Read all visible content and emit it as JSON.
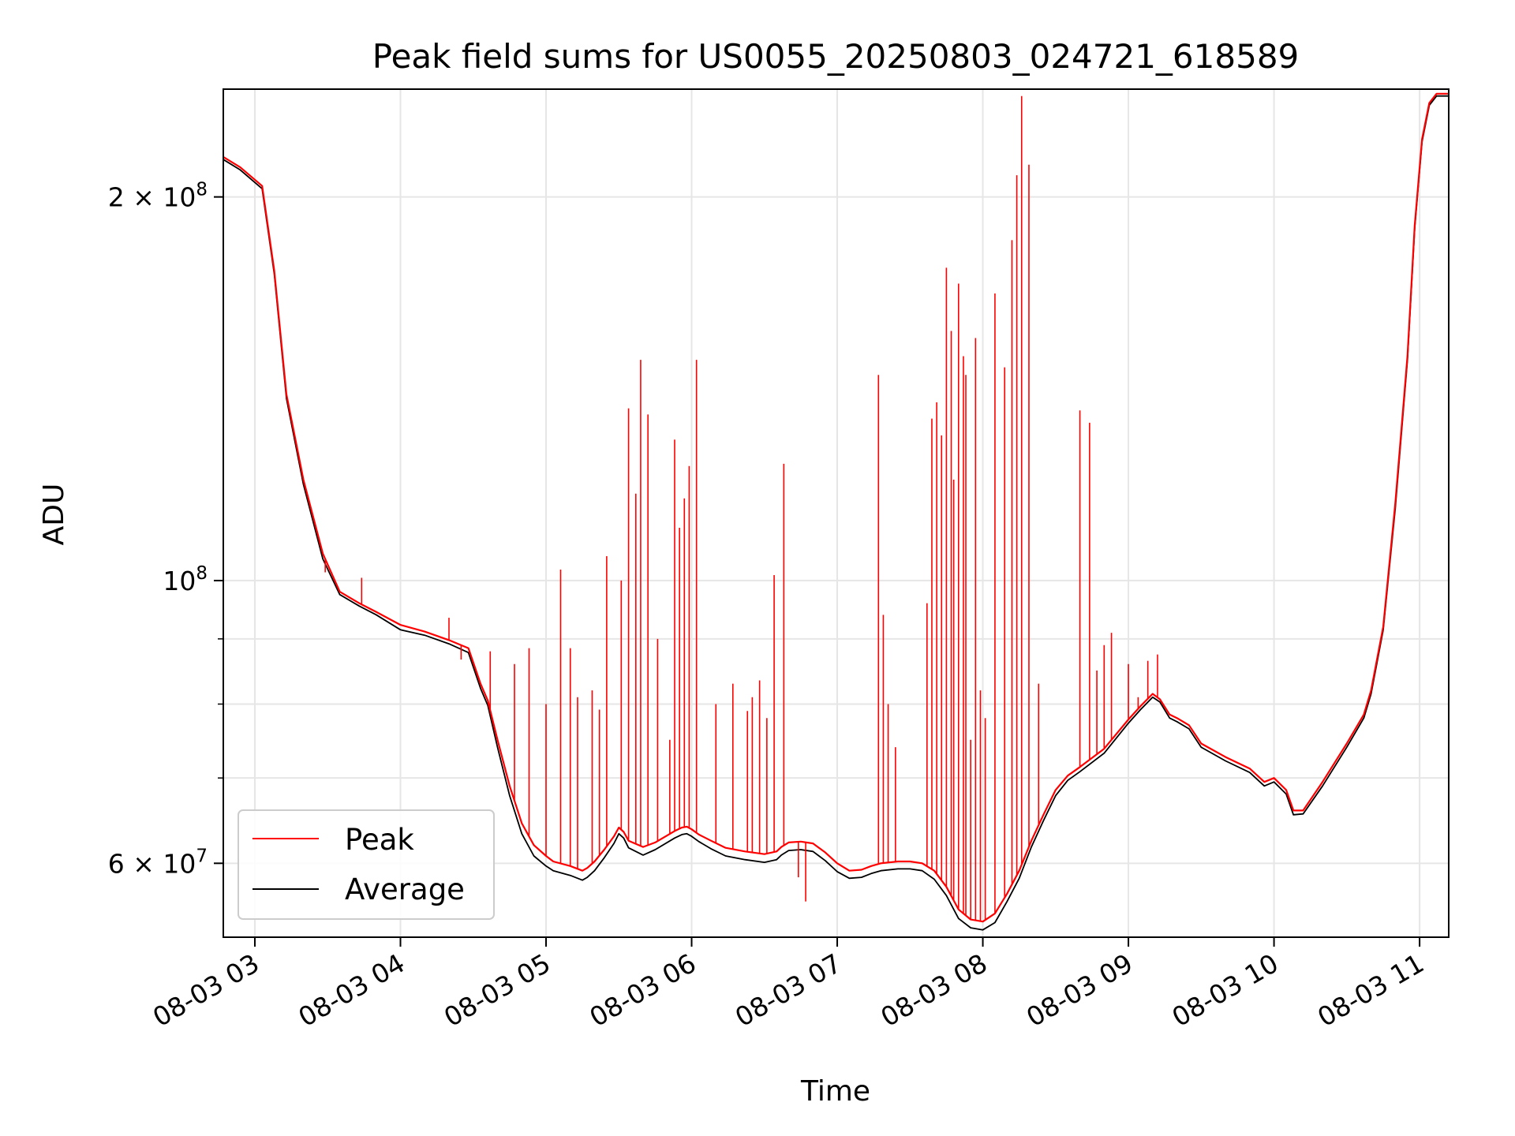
{
  "chart_data": {
    "type": "line",
    "title": "Peak field sums for US0055_20250803_024721_618589",
    "xlabel": "Time",
    "ylabel": "ADU",
    "y_scale": "log",
    "xlim": [
      "2025-08-03 02:47",
      "2025-08-03 11:12"
    ],
    "ylim": [
      52500000,
      243000000
    ],
    "grid": true,
    "legend_position": "lower-left",
    "x_ticks": [
      {
        "value": "2025-08-03 03:00",
        "label": "08-03 03"
      },
      {
        "value": "2025-08-03 04:00",
        "label": "08-03 04"
      },
      {
        "value": "2025-08-03 05:00",
        "label": "08-03 05"
      },
      {
        "value": "2025-08-03 06:00",
        "label": "08-03 06"
      },
      {
        "value": "2025-08-03 07:00",
        "label": "08-03 07"
      },
      {
        "value": "2025-08-03 08:00",
        "label": "08-03 08"
      },
      {
        "value": "2025-08-03 09:00",
        "label": "08-03 09"
      },
      {
        "value": "2025-08-03 10:00",
        "label": "08-03 10"
      },
      {
        "value": "2025-08-03 11:00",
        "label": "08-03 11"
      }
    ],
    "y_ticks": [
      {
        "value": 60000000,
        "base": "6",
        "sup": "7"
      },
      {
        "value": 100000000,
        "base": "10",
        "sup": "8"
      },
      {
        "value": 200000000,
        "base": "2",
        "sup": "8"
      }
    ],
    "y_minor_ticks": [
      70000000,
      80000000,
      90000000
    ],
    "series": [
      {
        "name": "Peak",
        "color": "#ff0000",
        "x": [
          "2025-08-03 02:47",
          "2025-08-03 02:54",
          "2025-08-03 03:03",
          "2025-08-03 03:08",
          "2025-08-03 03:13",
          "2025-08-03 03:20",
          "2025-08-03 03:28",
          "2025-08-03 03:35",
          "2025-08-03 03:43",
          "2025-08-03 03:50",
          "2025-08-03 04:00",
          "2025-08-03 04:10",
          "2025-08-03 04:20",
          "2025-08-03 04:28",
          "2025-08-03 04:33",
          "2025-08-03 04:36",
          "2025-08-03 04:40",
          "2025-08-03 04:45",
          "2025-08-03 04:50",
          "2025-08-03 04:55",
          "2025-08-03 05:00",
          "2025-08-03 05:03",
          "2025-08-03 05:10",
          "2025-08-03 05:15",
          "2025-08-03 05:17",
          "2025-08-03 05:20",
          "2025-08-03 05:24",
          "2025-08-03 05:28",
          "2025-08-03 05:30",
          "2025-08-03 05:32",
          "2025-08-03 05:34",
          "2025-08-03 05:40",
          "2025-08-03 05:45",
          "2025-08-03 05:53",
          "2025-08-03 05:56",
          "2025-08-03 05:58",
          "2025-08-03 06:00",
          "2025-08-03 06:03",
          "2025-08-03 06:08",
          "2025-08-03 06:14",
          "2025-08-03 06:22",
          "2025-08-03 06:30",
          "2025-08-03 06:35",
          "2025-08-03 06:37",
          "2025-08-03 06:40",
          "2025-08-03 06:45",
          "2025-08-03 06:50",
          "2025-08-03 06:52",
          "2025-08-03 06:55",
          "2025-08-03 07:00",
          "2025-08-03 07:05",
          "2025-08-03 07:10",
          "2025-08-03 07:14",
          "2025-08-03 07:18",
          "2025-08-03 07:25",
          "2025-08-03 07:30",
          "2025-08-03 07:35",
          "2025-08-03 07:40",
          "2025-08-03 07:45",
          "2025-08-03 07:50",
          "2025-08-03 07:55",
          "2025-08-03 08:00",
          "2025-08-03 08:05",
          "2025-08-03 08:10",
          "2025-08-03 08:15",
          "2025-08-03 08:20",
          "2025-08-03 08:25",
          "2025-08-03 08:30",
          "2025-08-03 08:35",
          "2025-08-03 08:40",
          "2025-08-03 08:50",
          "2025-08-03 09:00",
          "2025-08-03 09:05",
          "2025-08-03 09:10",
          "2025-08-03 09:13",
          "2025-08-03 09:17",
          "2025-08-03 09:20",
          "2025-08-03 09:25",
          "2025-08-03 09:30",
          "2025-08-03 09:40",
          "2025-08-03 09:50",
          "2025-08-03 09:56",
          "2025-08-03 10:00",
          "2025-08-03 10:05",
          "2025-08-03 10:08",
          "2025-08-03 10:12",
          "2025-08-03 10:20",
          "2025-08-03 10:30",
          "2025-08-03 10:37",
          "2025-08-03 10:40",
          "2025-08-03 10:45",
          "2025-08-03 10:50",
          "2025-08-03 10:55",
          "2025-08-03 10:58",
          "2025-08-03 11:01",
          "2025-08-03 11:04",
          "2025-08-03 11:07",
          "2025-08-03 11:12"
        ],
        "values": [
          215000000,
          211000000,
          204000000,
          175000000,
          140000000,
          120000000,
          105000000,
          98000000,
          96000000,
          94500000,
          92300000,
          91200000,
          89800000,
          88500000,
          83000000,
          80500000,
          75000000,
          69000000,
          64500000,
          62000000,
          60800000,
          60200000,
          59700000,
          59200000,
          59500000,
          60200000,
          61500000,
          63000000,
          64000000,
          63500000,
          62500000,
          61800000,
          62300000,
          63600000,
          64000000,
          64100000,
          63800000,
          63200000,
          62500000,
          61700000,
          61300000,
          61000000,
          61300000,
          61800000,
          62300000,
          62400000,
          62200000,
          61800000,
          61200000,
          60000000,
          59200000,
          59300000,
          59700000,
          60000000,
          60200000,
          60200000,
          60000000,
          59200000,
          57500000,
          55200000,
          54200000,
          54000000,
          54800000,
          56800000,
          59200000,
          62500000,
          65500000,
          68500000,
          70300000,
          71400000,
          73800000,
          77800000,
          79700000,
          81500000,
          80700000,
          78500000,
          78000000,
          77000000,
          74500000,
          72700000,
          71200000,
          69500000,
          70000000,
          68500000,
          66000000,
          66000000,
          69500000,
          74500000,
          78500000,
          82000000,
          92000000,
          115000000,
          150000000,
          190000000,
          222000000,
          237000000,
          241000000,
          241000000
        ]
      },
      {
        "name": "Average",
        "color": "#000000",
        "x": [
          "2025-08-03 02:47",
          "2025-08-03 02:54",
          "2025-08-03 03:03",
          "2025-08-03 03:08",
          "2025-08-03 03:13",
          "2025-08-03 03:20",
          "2025-08-03 03:28",
          "2025-08-03 03:35",
          "2025-08-03 03:43",
          "2025-08-03 03:50",
          "2025-08-03 04:00",
          "2025-08-03 04:10",
          "2025-08-03 04:20",
          "2025-08-03 04:28",
          "2025-08-03 04:33",
          "2025-08-03 04:36",
          "2025-08-03 04:40",
          "2025-08-03 04:45",
          "2025-08-03 04:50",
          "2025-08-03 04:55",
          "2025-08-03 05:00",
          "2025-08-03 05:03",
          "2025-08-03 05:10",
          "2025-08-03 05:15",
          "2025-08-03 05:17",
          "2025-08-03 05:20",
          "2025-08-03 05:24",
          "2025-08-03 05:28",
          "2025-08-03 05:30",
          "2025-08-03 05:32",
          "2025-08-03 05:34",
          "2025-08-03 05:40",
          "2025-08-03 05:45",
          "2025-08-03 05:53",
          "2025-08-03 05:56",
          "2025-08-03 05:58",
          "2025-08-03 06:00",
          "2025-08-03 06:03",
          "2025-08-03 06:08",
          "2025-08-03 06:14",
          "2025-08-03 06:22",
          "2025-08-03 06:30",
          "2025-08-03 06:35",
          "2025-08-03 06:37",
          "2025-08-03 06:40",
          "2025-08-03 06:45",
          "2025-08-03 06:50",
          "2025-08-03 06:52",
          "2025-08-03 06:55",
          "2025-08-03 07:00",
          "2025-08-03 07:05",
          "2025-08-03 07:10",
          "2025-08-03 07:14",
          "2025-08-03 07:18",
          "2025-08-03 07:25",
          "2025-08-03 07:30",
          "2025-08-03 07:35",
          "2025-08-03 07:40",
          "2025-08-03 07:45",
          "2025-08-03 07:50",
          "2025-08-03 07:55",
          "2025-08-03 08:00",
          "2025-08-03 08:05",
          "2025-08-03 08:10",
          "2025-08-03 08:15",
          "2025-08-03 08:20",
          "2025-08-03 08:25",
          "2025-08-03 08:30",
          "2025-08-03 08:35",
          "2025-08-03 08:40",
          "2025-08-03 08:50",
          "2025-08-03 09:00",
          "2025-08-03 09:05",
          "2025-08-03 09:10",
          "2025-08-03 09:13",
          "2025-08-03 09:17",
          "2025-08-03 09:20",
          "2025-08-03 09:25",
          "2025-08-03 09:30",
          "2025-08-03 09:40",
          "2025-08-03 09:50",
          "2025-08-03 09:56",
          "2025-08-03 10:00",
          "2025-08-03 10:05",
          "2025-08-03 10:08",
          "2025-08-03 10:12",
          "2025-08-03 10:20",
          "2025-08-03 10:30",
          "2025-08-03 10:37",
          "2025-08-03 10:40",
          "2025-08-03 10:45",
          "2025-08-03 10:50",
          "2025-08-03 10:55",
          "2025-08-03 10:58",
          "2025-08-03 11:01",
          "2025-08-03 11:04",
          "2025-08-03 11:07",
          "2025-08-03 11:12"
        ],
        "values": [
          214000000,
          210000000,
          203000000,
          174000000,
          139000000,
          119000000,
          104000000,
          97500000,
          95500000,
          94000000,
          91500000,
          90600000,
          89200000,
          87800000,
          82300000,
          79800000,
          74000000,
          67800000,
          63300000,
          60800000,
          59700000,
          59200000,
          58700000,
          58200000,
          58500000,
          59200000,
          60600000,
          62200000,
          63300000,
          62800000,
          61700000,
          60900000,
          61500000,
          62800000,
          63200000,
          63300000,
          63000000,
          62400000,
          61600000,
          60800000,
          60400000,
          60100000,
          60400000,
          60900000,
          61400000,
          61500000,
          61300000,
          60900000,
          60300000,
          59100000,
          58400000,
          58500000,
          58900000,
          59200000,
          59400000,
          59400000,
          59200000,
          58300000,
          56600000,
          54300000,
          53400000,
          53200000,
          53900000,
          56000000,
          58400000,
          61800000,
          64800000,
          67800000,
          69700000,
          70800000,
          73200000,
          77300000,
          79200000,
          81000000,
          80300000,
          78000000,
          77500000,
          76500000,
          74000000,
          72200000,
          70700000,
          69000000,
          69500000,
          68000000,
          65500000,
          65600000,
          69000000,
          74000000,
          78000000,
          81500000,
          91500000,
          114000000,
          149000000,
          189000000,
          221000000,
          236000000,
          240000000,
          240000000
        ]
      }
    ],
    "peak_spikes": {
      "x": [
        "2025-08-03 03:29",
        "2025-08-03 03:44",
        "2025-08-03 04:20",
        "2025-08-03 04:25",
        "2025-08-03 04:37",
        "2025-08-03 04:47",
        "2025-08-03 04:53",
        "2025-08-03 05:00",
        "2025-08-03 05:06",
        "2025-08-03 05:10",
        "2025-08-03 05:13",
        "2025-08-03 05:19",
        "2025-08-03 05:22",
        "2025-08-03 05:25",
        "2025-08-03 05:31",
        "2025-08-03 05:34",
        "2025-08-03 05:37",
        "2025-08-03 05:39",
        "2025-08-03 05:42",
        "2025-08-03 05:46",
        "2025-08-03 05:51",
        "2025-08-03 05:53",
        "2025-08-03 05:55",
        "2025-08-03 05:57",
        "2025-08-03 05:59",
        "2025-08-03 06:02",
        "2025-08-03 06:10",
        "2025-08-03 06:17",
        "2025-08-03 06:23",
        "2025-08-03 06:25",
        "2025-08-03 06:28",
        "2025-08-03 06:31",
        "2025-08-03 06:34",
        "2025-08-03 06:38",
        "2025-08-03 06:44",
        "2025-08-03 06:47",
        "2025-08-03 07:17",
        "2025-08-03 07:19",
        "2025-08-03 07:21",
        "2025-08-03 07:24",
        "2025-08-03 07:37",
        "2025-08-03 07:39",
        "2025-08-03 07:41",
        "2025-08-03 07:43",
        "2025-08-03 07:45",
        "2025-08-03 07:47",
        "2025-08-03 07:48",
        "2025-08-03 07:50",
        "2025-08-03 07:52",
        "2025-08-03 07:53",
        "2025-08-03 07:55",
        "2025-08-03 07:57",
        "2025-08-03 07:59",
        "2025-08-03 08:01",
        "2025-08-03 08:05",
        "2025-08-03 08:09",
        "2025-08-03 08:12",
        "2025-08-03 08:14",
        "2025-08-03 08:16",
        "2025-08-03 08:19",
        "2025-08-03 08:23",
        "2025-08-03 08:40",
        "2025-08-03 08:44",
        "2025-08-03 08:47",
        "2025-08-03 08:50",
        "2025-08-03 08:53",
        "2025-08-03 09:00",
        "2025-08-03 09:04",
        "2025-08-03 09:08",
        "2025-08-03 09:12"
      ],
      "values": [
        101500000,
        100500000,
        93500000,
        86700000,
        88000000,
        86000000,
        88500000,
        80000000,
        102000000,
        88500000,
        81000000,
        82000000,
        79200000,
        104500000,
        100000000,
        136500000,
        117000000,
        149000000,
        135000000,
        90000000,
        75000000,
        129000000,
        110000000,
        116000000,
        123000000,
        149000000,
        80000000,
        83000000,
        79000000,
        81000000,
        83500000,
        78000000,
        101000000,
        123500000,
        58500000,
        56000000,
        145000000,
        94000000,
        80000000,
        74000000,
        96000000,
        134000000,
        138000000,
        130000000,
        176000000,
        157000000,
        120000000,
        171000000,
        150000000,
        145000000,
        75000000,
        155000000,
        82000000,
        78000000,
        168000000,
        147000000,
        185000000,
        208000000,
        240000000,
        212000000,
        83000000,
        136000000,
        133000000,
        85000000,
        89000000,
        91000000,
        86000000,
        81000000,
        86500000,
        87500000
      ]
    },
    "legend": [
      {
        "label": "Peak",
        "color": "#ff0000"
      },
      {
        "label": "Average",
        "color": "#000000"
      }
    ]
  }
}
